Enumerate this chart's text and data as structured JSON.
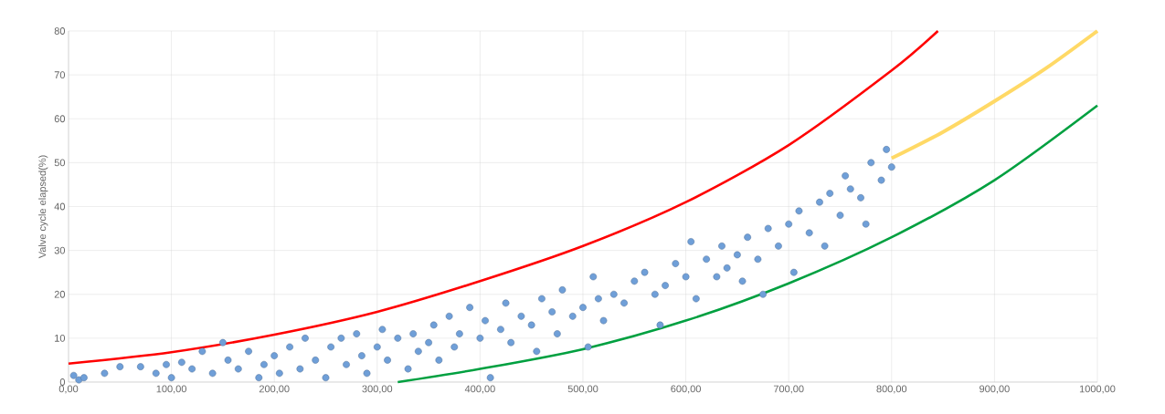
{
  "chart_data": {
    "type": "scatter",
    "ylabel": "Valve cycle elapsed(%)",
    "xlim": [
      0,
      1000
    ],
    "ylim": [
      0,
      80
    ],
    "xticks": [
      {
        "value": 0,
        "label": "0,00"
      },
      {
        "value": 100,
        "label": "100,00"
      },
      {
        "value": 200,
        "label": "200,00"
      },
      {
        "value": 300,
        "label": "300,00"
      },
      {
        "value": 400,
        "label": "400,00"
      },
      {
        "value": 500,
        "label": "500,00"
      },
      {
        "value": 600,
        "label": "600,00"
      },
      {
        "value": 700,
        "label": "700,00"
      },
      {
        "value": 800,
        "label": "800,00"
      },
      {
        "value": 900,
        "label": "900,00"
      },
      {
        "value": 1000,
        "label": "1000,00"
      }
    ],
    "yticks": [
      0,
      10,
      20,
      30,
      40,
      50,
      60,
      70,
      80
    ],
    "grid": true,
    "series": [
      {
        "color": "#6f9fd8",
        "x": [
          5,
          10,
          15,
          35,
          50,
          70,
          85,
          95,
          100,
          110,
          120,
          130,
          140,
          150,
          155,
          165,
          175,
          185,
          190,
          200,
          205,
          215,
          225,
          230,
          240,
          250,
          255,
          265,
          270,
          280,
          285,
          290,
          300,
          305,
          310,
          320,
          330,
          335,
          340,
          350,
          355,
          360,
          370,
          375,
          380,
          390,
          400,
          405,
          410,
          420,
          425,
          430,
          440,
          450,
          455,
          460,
          470,
          475,
          480,
          490,
          500,
          505,
          510,
          515,
          520,
          530,
          540,
          550,
          560,
          570,
          575,
          580,
          590,
          600,
          605,
          610,
          620,
          630,
          635,
          640,
          650,
          655,
          660,
          670,
          675,
          680,
          690,
          700,
          705,
          710,
          720,
          730,
          735,
          740,
          750,
          755,
          760,
          770,
          775,
          780,
          790,
          795,
          800
        ],
        "values": [
          1.5,
          0.5,
          1,
          2,
          3.5,
          3.5,
          2,
          4,
          1,
          4.5,
          3,
          7,
          2,
          9,
          5,
          3,
          7,
          1,
          4,
          6,
          2,
          8,
          3,
          10,
          5,
          1,
          8,
          10,
          4,
          11,
          6,
          2,
          8,
          12,
          5,
          10,
          3,
          11,
          7,
          9,
          13,
          5,
          15,
          8,
          11,
          17,
          10,
          14,
          1,
          12,
          18,
          9,
          15,
          13,
          7,
          19,
          16,
          11,
          21,
          15,
          17,
          8,
          24,
          19,
          14,
          20,
          18,
          23,
          25,
          20,
          13,
          22,
          27,
          24,
          32,
          19,
          28,
          24,
          31,
          26,
          29,
          23,
          33,
          28,
          20,
          35,
          31,
          36,
          25,
          39,
          34,
          41,
          31,
          43,
          38,
          47,
          44,
          42,
          36,
          50,
          46,
          53,
          49
        ]
      },
      {
        "type": "line",
        "color": "#ff0000",
        "x": [
          0,
          100,
          200,
          300,
          400,
          500,
          600,
          700,
          800,
          845
        ],
        "values": [
          4.2,
          6.8,
          10.8,
          16,
          23,
          31,
          41,
          54,
          71,
          80
        ]
      },
      {
        "type": "line",
        "color": "#00a040",
        "x": [
          320,
          400,
          500,
          600,
          700,
          800,
          900,
          1000
        ],
        "values": [
          0,
          3,
          7.5,
          14,
          22.5,
          33,
          46,
          63
        ]
      },
      {
        "type": "line",
        "color": "#ffd966",
        "x": [
          800,
          850,
          900,
          950,
          1000
        ],
        "values": [
          51,
          57,
          64,
          71.5,
          80
        ]
      }
    ]
  }
}
